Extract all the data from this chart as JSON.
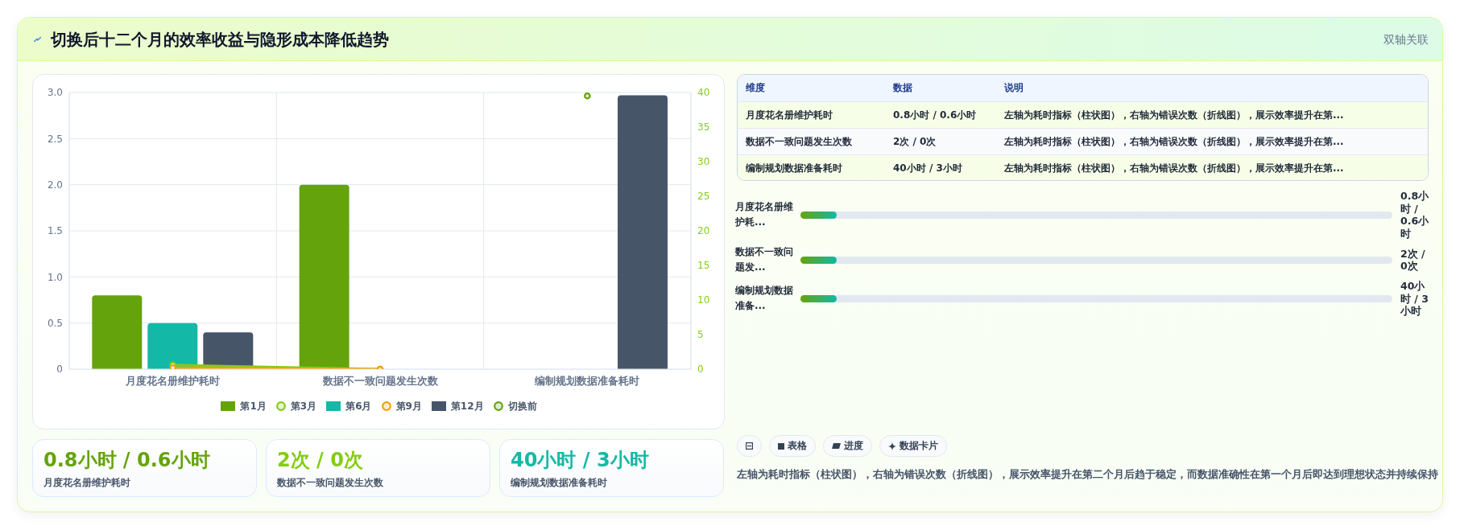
{
  "chart_data": [
    {
      "type": "other",
      "title": "切换后十二个月的效率收益与隐形成本降低趋势",
      "annotations": [
        "双轴关联"
      ]
    },
    {
      "type": "bar",
      "categories": [
        "月度花名册维护耗时",
        "数据不一致问题发生次数",
        "编制规划数据准备耗时"
      ],
      "series": [
        {
          "name": "第1月",
          "type": "bar",
          "color": "#65a30d",
          "values": [
            0.8,
            2,
            null
          ]
        },
        {
          "name": "第3月",
          "type": "line",
          "axis": "y2",
          "color": "#84cc16",
          "values": [
            0.6,
            0,
            null
          ]
        },
        {
          "name": "第6月",
          "type": "bar",
          "color": "#14b8a6",
          "values": [
            0.5,
            null,
            null
          ]
        },
        {
          "name": "第9月",
          "type": "line",
          "axis": "y2",
          "color": "#f59e0b",
          "values": [
            0.2,
            0,
            null
          ]
        },
        {
          "name": "第12月",
          "type": "bar",
          "color": "#475569",
          "values": [
            0.4,
            null,
            2.97
          ]
        },
        {
          "name": "切换前",
          "type": "line",
          "axis": "y2",
          "color": "#65a30d",
          "values": [
            null,
            null,
            39.5
          ]
        }
      ],
      "ylim": [
        0,
        3
      ],
      "yticks": [
        0,
        0.5,
        {
          "value": 1,
          "label": "1.0"
        },
        1.5,
        {
          "value": 2,
          "label": "2.0"
        },
        2.5,
        {
          "value": 3,
          "label": "3.0"
        }
      ],
      "y2lim": [
        0,
        40
      ],
      "y2ticks": [
        0,
        5,
        10,
        15,
        20,
        25,
        30,
        35,
        40
      ],
      "grid": true,
      "legend": "bottom",
      "marker": "circle"
    },
    {
      "type": "other",
      "annotations": [
        "维度",
        "数据",
        "说明",
        "月度花名册维护耗时",
        "0.8小时 / 0.6小时",
        "左轴为耗时指标（柱状图），右轴为错误次数（折线图），展示效率提升在第...",
        "数据不一致问题发生次数",
        "2次 / 0次",
        "左轴为耗时指标（柱状图），右轴为错误次数（折线图），展示效率提升在第...",
        "编制规划数据准备耗时",
        "40小时 / 3小时",
        "左轴为耗时指标（柱状图），右轴为错误次数（折线图），展示效率提升在第..."
      ]
    },
    {
      "type": "other",
      "annotations": [
        "月度花名册维护耗...",
        "0.8小时 / 0.6小时",
        "数据不一致问题发...",
        "2次 / 0次",
        "编制规划数据准备...",
        "40小时 / 3小时"
      ]
    },
    {
      "type": "other",
      "annotations": [
        "0.8小时 / 0.6小时",
        "月度花名册维护耗时",
        "2次 / 0次",
        "数据不一致问题发生次数",
        "40小时 / 3小时",
        "编制规划数据准备耗时"
      ]
    },
    {
      "type": "other",
      "annotations": [
        "表格",
        "进度",
        "数据卡片",
        "左轴为耗时指标（柱状图），右轴为错误次数（折线图），展示效率提升在第二个月后趋于稳定，而数据准确性在第一个月后即达到理想状态并持续保持"
      ]
    }
  ]
}
